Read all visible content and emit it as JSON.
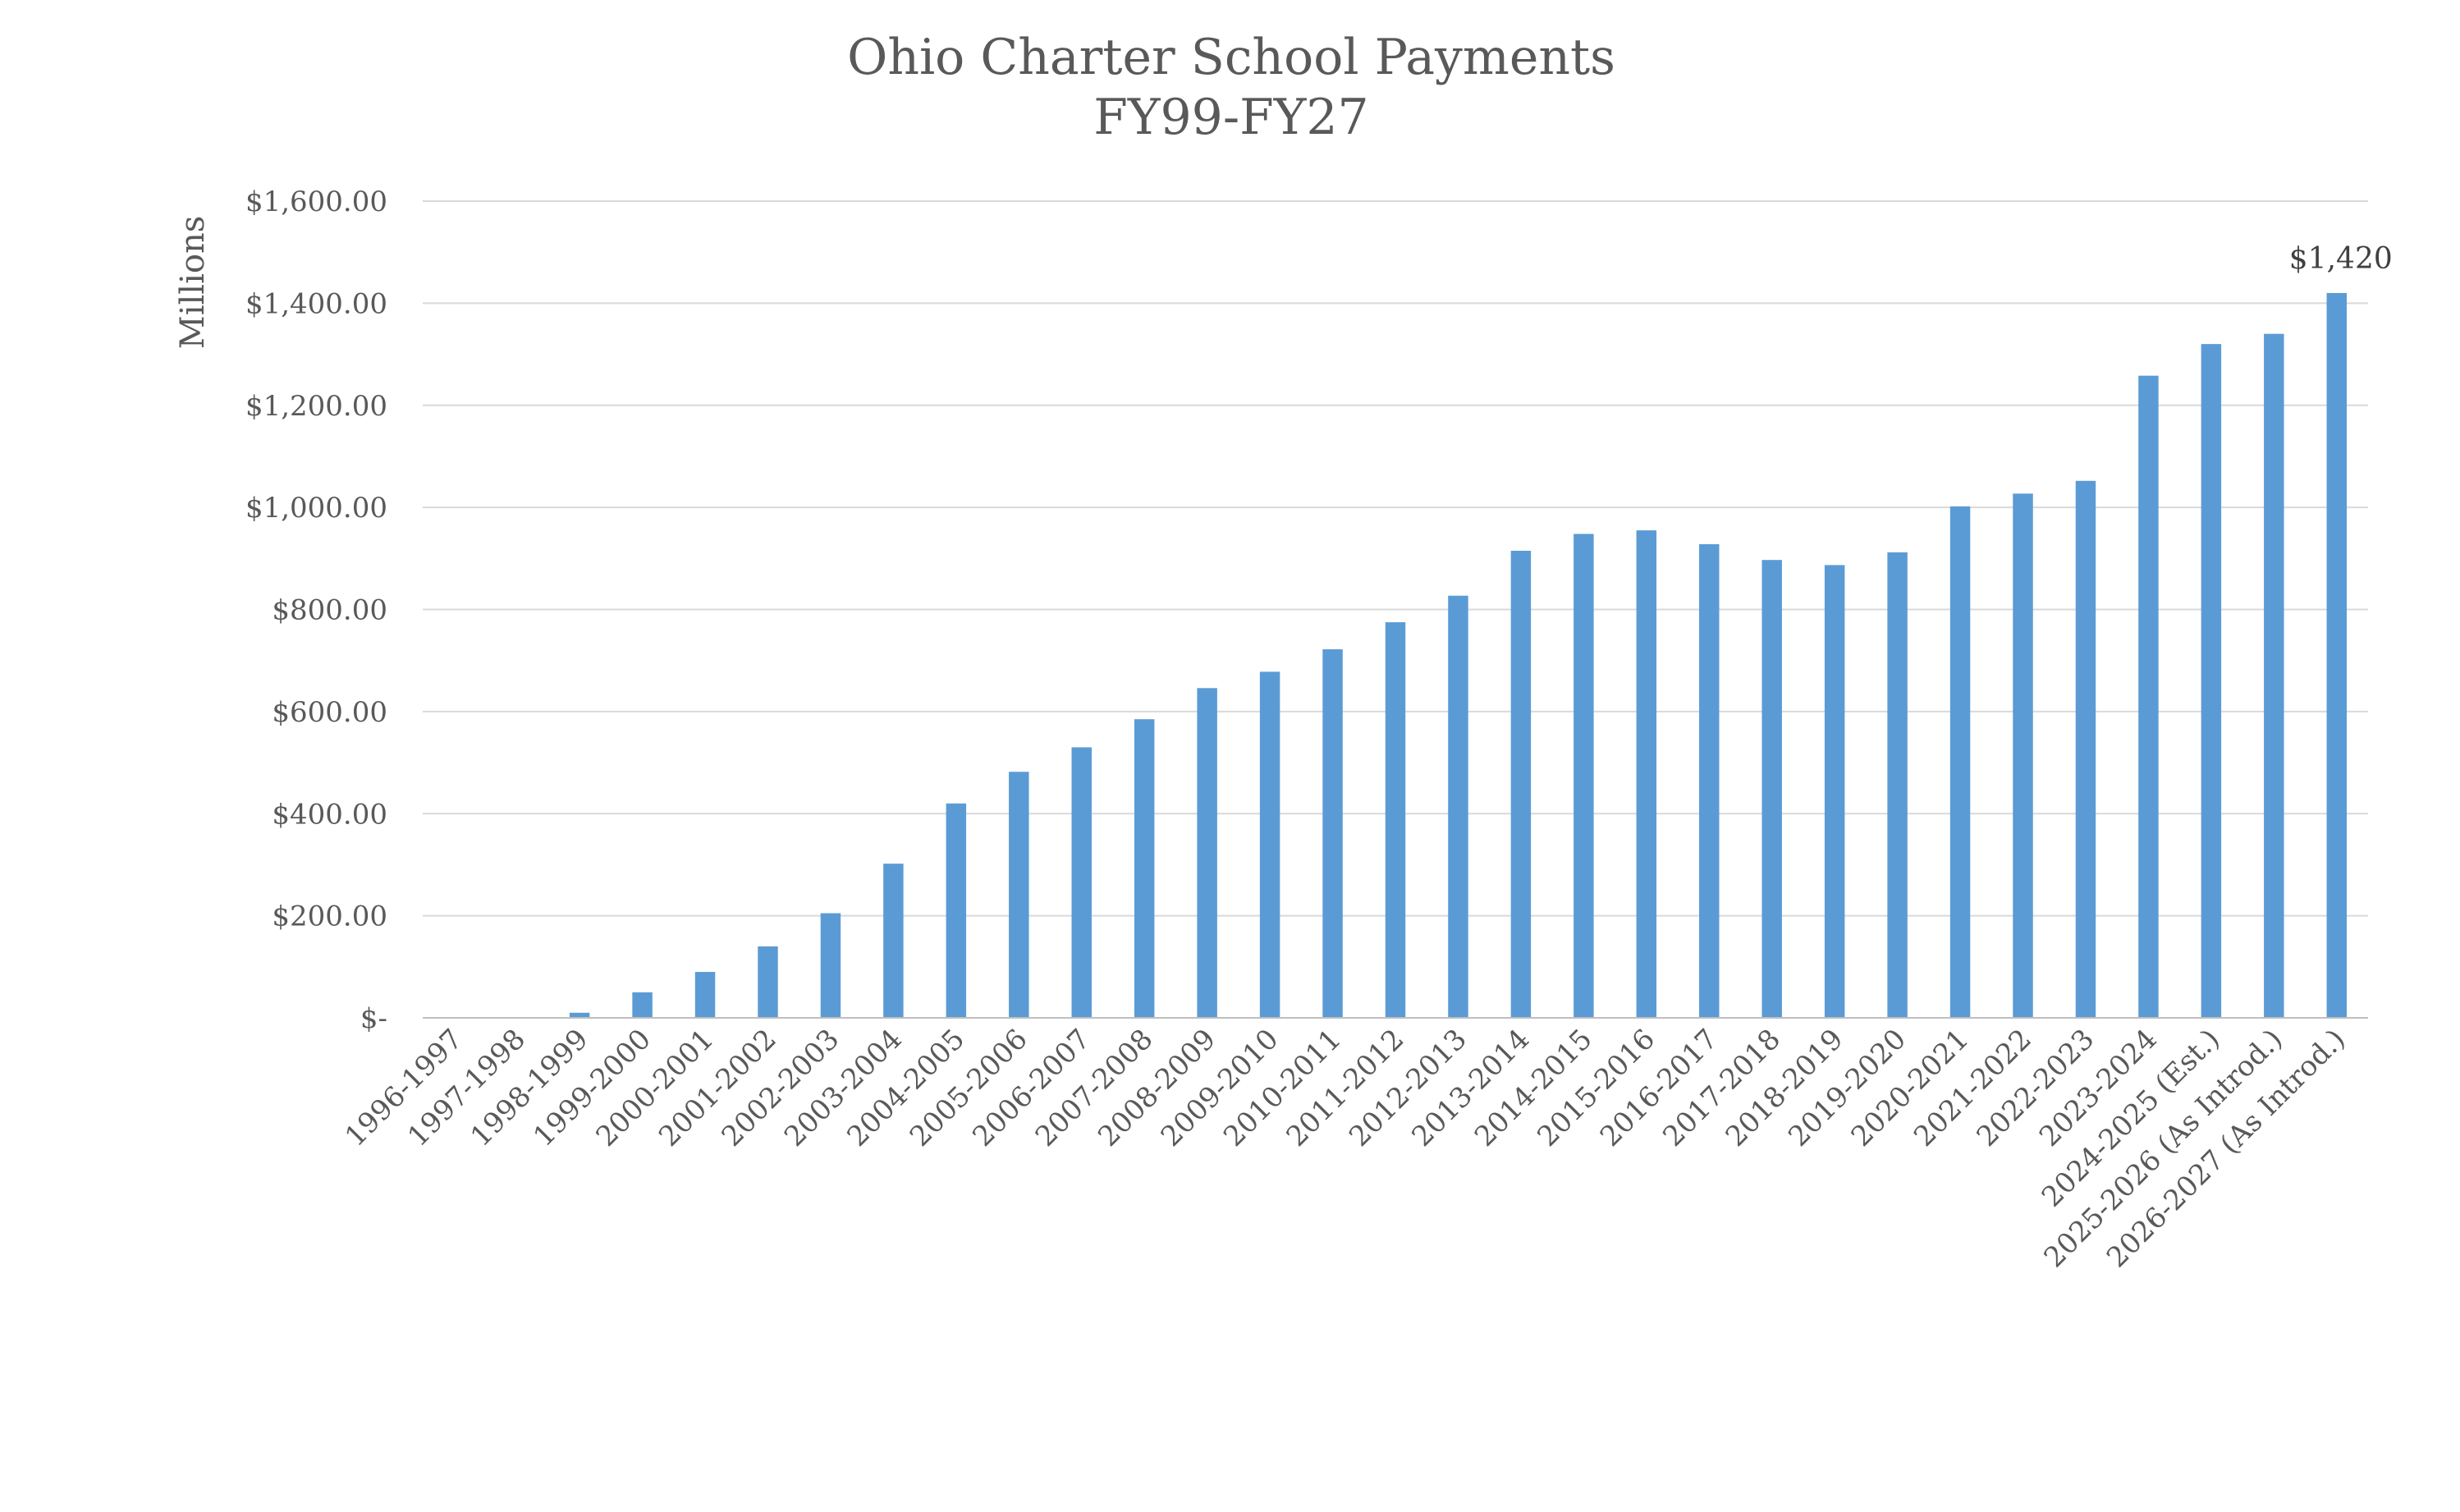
{
  "chart_data": {
    "type": "bar",
    "title": "Ohio Charter School Payments",
    "subtitle": "FY99-FY27",
    "ylabel": "Millions",
    "xlabel": "",
    "ylim": [
      0,
      1600
    ],
    "yticks": [
      {
        "value": 0,
        "label": "$-"
      },
      {
        "value": 200,
        "label": "$200.00"
      },
      {
        "value": 400,
        "label": "$400.00"
      },
      {
        "value": 600,
        "label": "$600.00"
      },
      {
        "value": 800,
        "label": "$800.00"
      },
      {
        "value": 1000,
        "label": "$1,000.00"
      },
      {
        "value": 1200,
        "label": "$1,200.00"
      },
      {
        "value": 1400,
        "label": "$1,400.00"
      },
      {
        "value": 1600,
        "label": "$1,600.00"
      }
    ],
    "grid": true,
    "legend": "none",
    "bar_color": "#5b9bd5",
    "categories": [
      "1996-1997",
      "1997-1998",
      "1998-1999",
      "1999-2000",
      "2000-2001",
      "2001-2002",
      "2002-2003",
      "2003-2004",
      "2004-2005",
      "2005-2006",
      "2006-2007",
      "2007-2008",
      "2008-2009",
      "2009-2010",
      "2010-2011",
      "2011-2012",
      "2012-2013",
      "2013-2014",
      "2014-2015",
      "2015-2016",
      "2016-2017",
      "2017-2018",
      "2018-2019",
      "2019-2020",
      "2020-2021",
      "2021-2022",
      "2022-2023",
      "2023-2024",
      "2024-2025 (Est.)",
      "2025-2026 (As Introd.)",
      "2026-2027 (As Introd.)"
    ],
    "values": [
      0,
      0,
      10,
      50,
      90,
      140,
      205,
      302,
      420,
      482,
      530,
      585,
      646,
      678,
      722,
      775,
      827,
      915,
      948,
      955,
      928,
      897,
      887,
      912,
      1002,
      1027,
      1052,
      1258,
      1320,
      1340,
      1420
    ],
    "annotations": [
      {
        "category": "2026-2027 (As Introd.)",
        "text": "$1,420"
      }
    ]
  }
}
